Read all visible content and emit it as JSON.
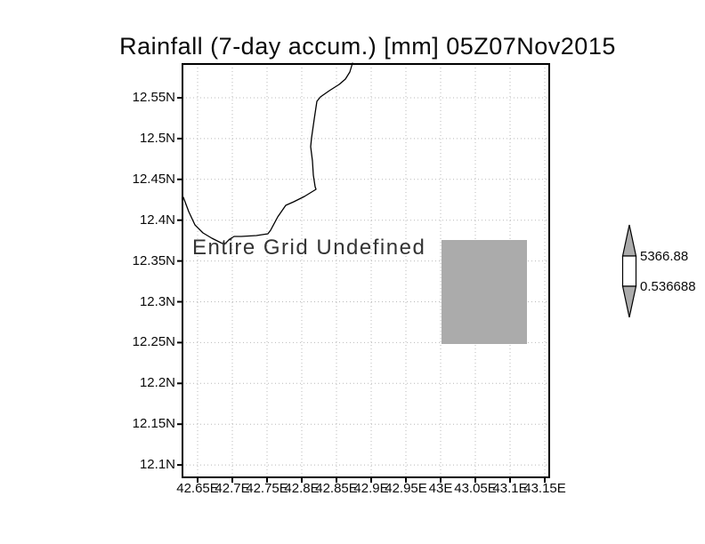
{
  "title": "Rainfall (7-day accum.) [mm] 05Z07Nov2015",
  "plot": {
    "undefined_text": "Entire Grid Undefined"
  },
  "y_axis": {
    "labels": [
      "12.55N",
      "12.5N",
      "12.45N",
      "12.4N",
      "12.35N",
      "12.3N",
      "12.25N",
      "12.2N",
      "12.15N",
      "12.1N"
    ]
  },
  "x_axis": {
    "labels": [
      "42.65E",
      "42.7E",
      "42.75E",
      "42.8E",
      "42.85E",
      "42.9E",
      "42.95E",
      "43E",
      "43.05E",
      "43.1E",
      "43.15E"
    ]
  },
  "colorbar": {
    "max_label": "5366.88",
    "min_label": "0.536688"
  },
  "colors": {
    "shade_gray": "#ababab",
    "grid": "#b9b9b9",
    "frame": "#000000"
  },
  "chart_data": {
    "type": "heatmap",
    "title": "Rainfall (7-day accum.) [mm] 05Z07Nov2015",
    "xlabel": "",
    "ylabel": "",
    "x_ticks": [
      "42.65E",
      "42.7E",
      "42.75E",
      "42.8E",
      "42.85E",
      "42.9E",
      "42.95E",
      "43E",
      "43.05E",
      "43.1E",
      "43.15E"
    ],
    "y_ticks": [
      "12.55N",
      "12.5N",
      "12.45N",
      "12.4N",
      "12.35N",
      "12.3N",
      "12.25N",
      "12.2N",
      "12.15N",
      "12.1N"
    ],
    "xlim": [
      42.63,
      43.16
    ],
    "ylim": [
      12.08,
      12.59
    ],
    "grid": true,
    "annotation": "Entire Grid Undefined",
    "colorbar": {
      "min": 0.536688,
      "max": 5366.88
    },
    "shaded_region": {
      "x": [
        43.0,
        43.125
      ],
      "y": [
        12.25,
        12.375
      ],
      "color": "#ababab"
    },
    "series": []
  }
}
